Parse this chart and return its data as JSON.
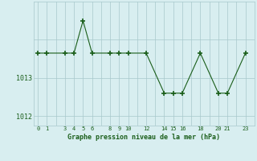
{
  "x": [
    0,
    1,
    3,
    4,
    5,
    6,
    8,
    9,
    10,
    12,
    14,
    15,
    16,
    18,
    20,
    21,
    23
  ],
  "y": [
    1013.65,
    1013.65,
    1013.65,
    1013.65,
    1014.5,
    1013.65,
    1013.65,
    1013.65,
    1013.65,
    1013.65,
    1012.6,
    1012.6,
    1012.6,
    1013.65,
    1012.6,
    1012.6,
    1013.65
  ],
  "line_color": "#1a5e1a",
  "marker": "+",
  "bg_color": "#d8eef0",
  "grid_color": "#a8c8cc",
  "xlabel": "Graphe pression niveau de la mer (hPa)",
  "xlabel_color": "#1a5e1a",
  "xtick_labels_show": [
    "0",
    "1",
    "3",
    "4",
    "5",
    "6",
    "8",
    "9",
    "10",
    "12",
    "14",
    "15",
    "16",
    "18",
    "20",
    "21",
    "23"
  ],
  "xtick_positions_show": [
    0,
    1,
    3,
    4,
    5,
    6,
    8,
    9,
    10,
    12,
    14,
    15,
    16,
    18,
    20,
    21,
    23
  ],
  "ytick_labels": [
    "1012",
    "1013"
  ],
  "ytick_positions": [
    1012,
    1013
  ],
  "ylim": [
    1011.75,
    1015.0
  ],
  "xlim": [
    -0.5,
    24.0
  ]
}
